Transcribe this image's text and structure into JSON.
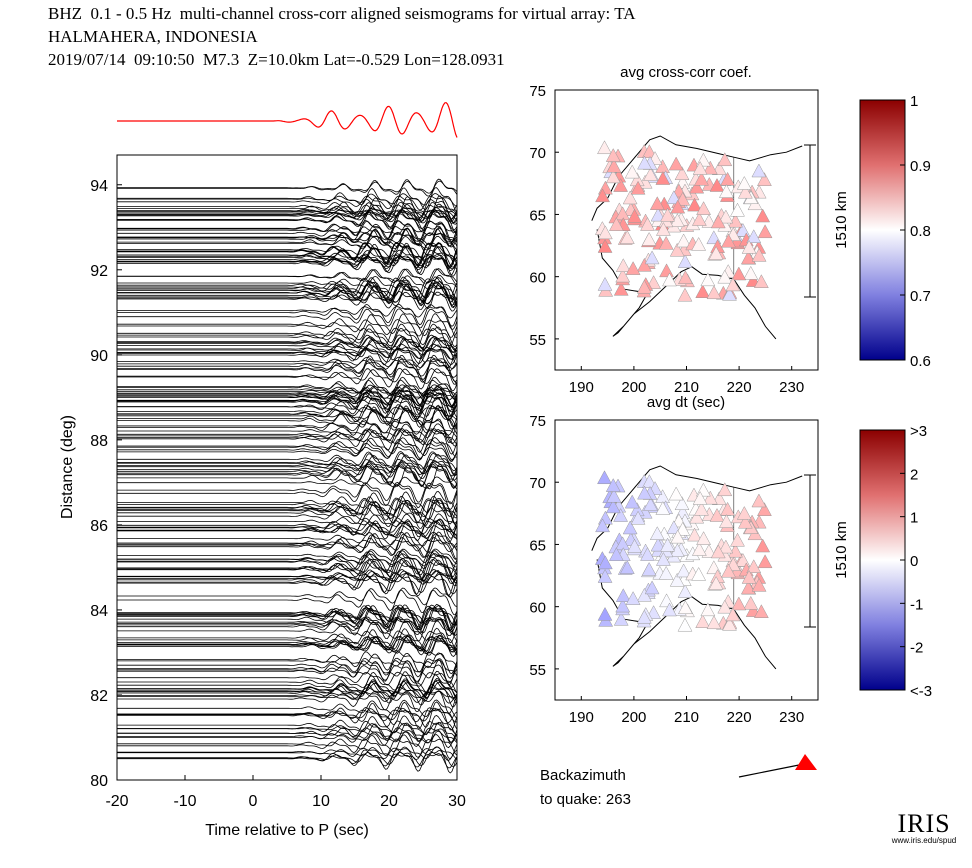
{
  "title": {
    "line1": "BHZ  0.1 - 0.5 Hz  multi-channel cross-corr aligned seismograms for virtual array: TA",
    "line2": "HALMAHERA, INDONESIA",
    "line3": "2019/07/14  09:10:50  M7.3  Z=10.0km Lat=-0.529 Lon=128.0931"
  },
  "colors": {
    "stack_trace": "#ff0000",
    "traces": "#000000",
    "pos": "#b2182b",
    "neg": "#1a1a9c"
  },
  "chart_data": [
    {
      "type": "line",
      "name": "record-section",
      "xlabel": "Time relative to P (sec)",
      "ylabel": "Distance (deg)",
      "xlim": [
        -20,
        30
      ],
      "ylim": [
        80,
        94.7
      ],
      "xticks": [
        "-20",
        "-10",
        "0",
        "10",
        "20",
        "30"
      ],
      "yticks": [
        "80",
        "82",
        "84",
        "86",
        "88",
        "90",
        "92",
        "94"
      ],
      "signal_onset_sec": 5,
      "distance_range_deg": [
        80.5,
        94.0
      ]
    },
    {
      "type": "scatter",
      "name": "avg-cross-corr-map",
      "title": "avg cross-corr coef.",
      "xlim": [
        185,
        235
      ],
      "ylim": [
        52.5,
        75
      ],
      "xticks": [
        "190",
        "200",
        "210",
        "220",
        "230"
      ],
      "yticks": [
        "55",
        "60",
        "65",
        "70",
        "75"
      ],
      "scale_label": "1510 km",
      "colorbar": {
        "range": [
          0.6,
          1
        ],
        "ticks": [
          "1",
          "0.9",
          "0.8",
          "0.7",
          "0.6"
        ]
      }
    },
    {
      "type": "scatter",
      "name": "avg-dt-map",
      "title": "avg dt (sec)",
      "xlim": [
        185,
        235
      ],
      "ylim": [
        52.5,
        75
      ],
      "xticks": [
        "190",
        "200",
        "210",
        "220",
        "230"
      ],
      "yticks": [
        "55",
        "60",
        "65",
        "70",
        "75"
      ],
      "scale_label": "1510 km",
      "colorbar": {
        "range": [
          -3,
          3
        ],
        "ticks": [
          ">3",
          "2",
          "1",
          "0",
          "-1",
          "-2",
          "<-3"
        ]
      }
    }
  ],
  "backazimuth": {
    "label1": "Backazimuth",
    "label2": "to quake:",
    "value": "263"
  },
  "logo": {
    "name": "IRIS",
    "url": "www.iris.edu/spud"
  }
}
